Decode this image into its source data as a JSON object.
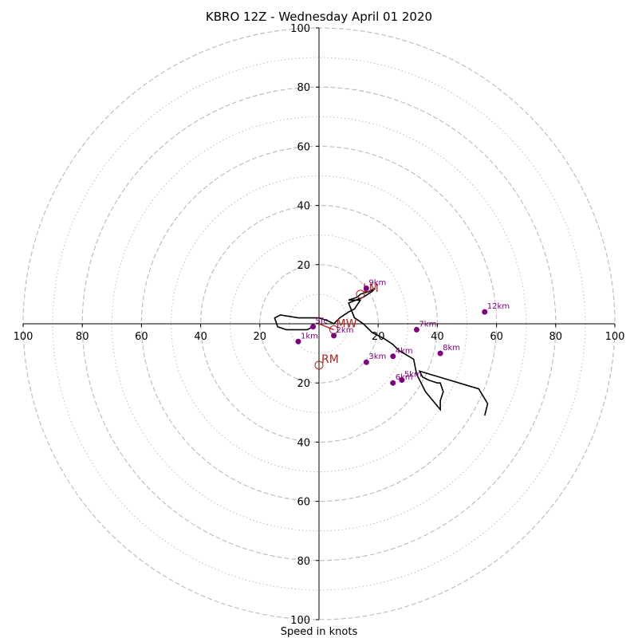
{
  "title": "KBRO 12Z - Wednesday April 01 2020",
  "xlabel": "Speed in knots",
  "chart_data": {
    "type": "line",
    "title": "KBRO 12Z - Wednesday April 01 2020",
    "xlabel": "Speed in knots",
    "ylabel": "",
    "xlim": [
      -100,
      100
    ],
    "ylim": [
      -100,
      100
    ],
    "grid": true,
    "ring_major": [
      20,
      40,
      60,
      80,
      100
    ],
    "ring_minor": [
      10,
      30,
      50,
      70,
      90
    ],
    "x_tick_labels": [
      "100",
      "80",
      "60",
      "40",
      "20",
      "20",
      "40",
      "60",
      "80",
      "100"
    ],
    "x_tick_values": [
      -100,
      -80,
      -60,
      -40,
      -20,
      20,
      40,
      60,
      80,
      100
    ],
    "y_tick_labels": [
      "100",
      "80",
      "60",
      "40",
      "20",
      "20",
      "40",
      "60",
      "80",
      "100"
    ],
    "y_tick_values": [
      100,
      80,
      60,
      40,
      20,
      -20,
      -40,
      -60,
      -80,
      -100
    ],
    "hodograph": {
      "u": [
        -2,
        -4,
        -11,
        -14,
        -15,
        -13,
        -7,
        0,
        3,
        5,
        7,
        10,
        12,
        14,
        10,
        13,
        14,
        17,
        19,
        18,
        15,
        10,
        12,
        15,
        17,
        18,
        22,
        25,
        27,
        32,
        33,
        36,
        41,
        41,
        42,
        41,
        40,
        37,
        35,
        34,
        54,
        57,
        56
      ],
      "v": [
        -1,
        -2,
        -2,
        -1,
        2,
        3,
        2,
        2,
        1,
        0,
        2,
        4,
        5,
        8,
        8,
        9,
        10,
        11,
        12,
        11,
        9,
        7,
        2,
        0,
        -2,
        -3,
        -5,
        -7,
        -9,
        -12,
        -17,
        -23,
        -29,
        -26,
        -23,
        -20,
        -20,
        -19,
        -18,
        -16,
        -22,
        -27,
        -31
      ]
    },
    "height_markers": [
      {
        "label": "Sfc",
        "u": -2,
        "v": -1
      },
      {
        "label": "1km",
        "u": -7,
        "v": -6
      },
      {
        "label": "2km",
        "u": 5,
        "v": -4
      },
      {
        "label": "3km",
        "u": 16,
        "v": -13
      },
      {
        "label": "4km",
        "u": 25,
        "v": -11
      },
      {
        "label": "5km",
        "u": 28,
        "v": -19
      },
      {
        "label": "6km",
        "u": 25,
        "v": -20
      },
      {
        "label": "7km",
        "u": 33,
        "v": -2
      },
      {
        "label": "8km",
        "u": 41,
        "v": -10
      },
      {
        "label": "9km",
        "u": 16,
        "v": 12
      },
      {
        "label": "12km",
        "u": 56,
        "v": 4
      }
    ],
    "storm_motion": [
      {
        "label": "LM",
        "u": 14,
        "v": 10
      },
      {
        "label": "MW",
        "u": 5,
        "v": -2
      },
      {
        "label": "RM",
        "u": 0,
        "v": -14
      }
    ],
    "colors": {
      "hodograph": "#000000",
      "height_markers": "#800080",
      "storm_motion": "#b22222",
      "grid": "#bfbfbf"
    }
  }
}
